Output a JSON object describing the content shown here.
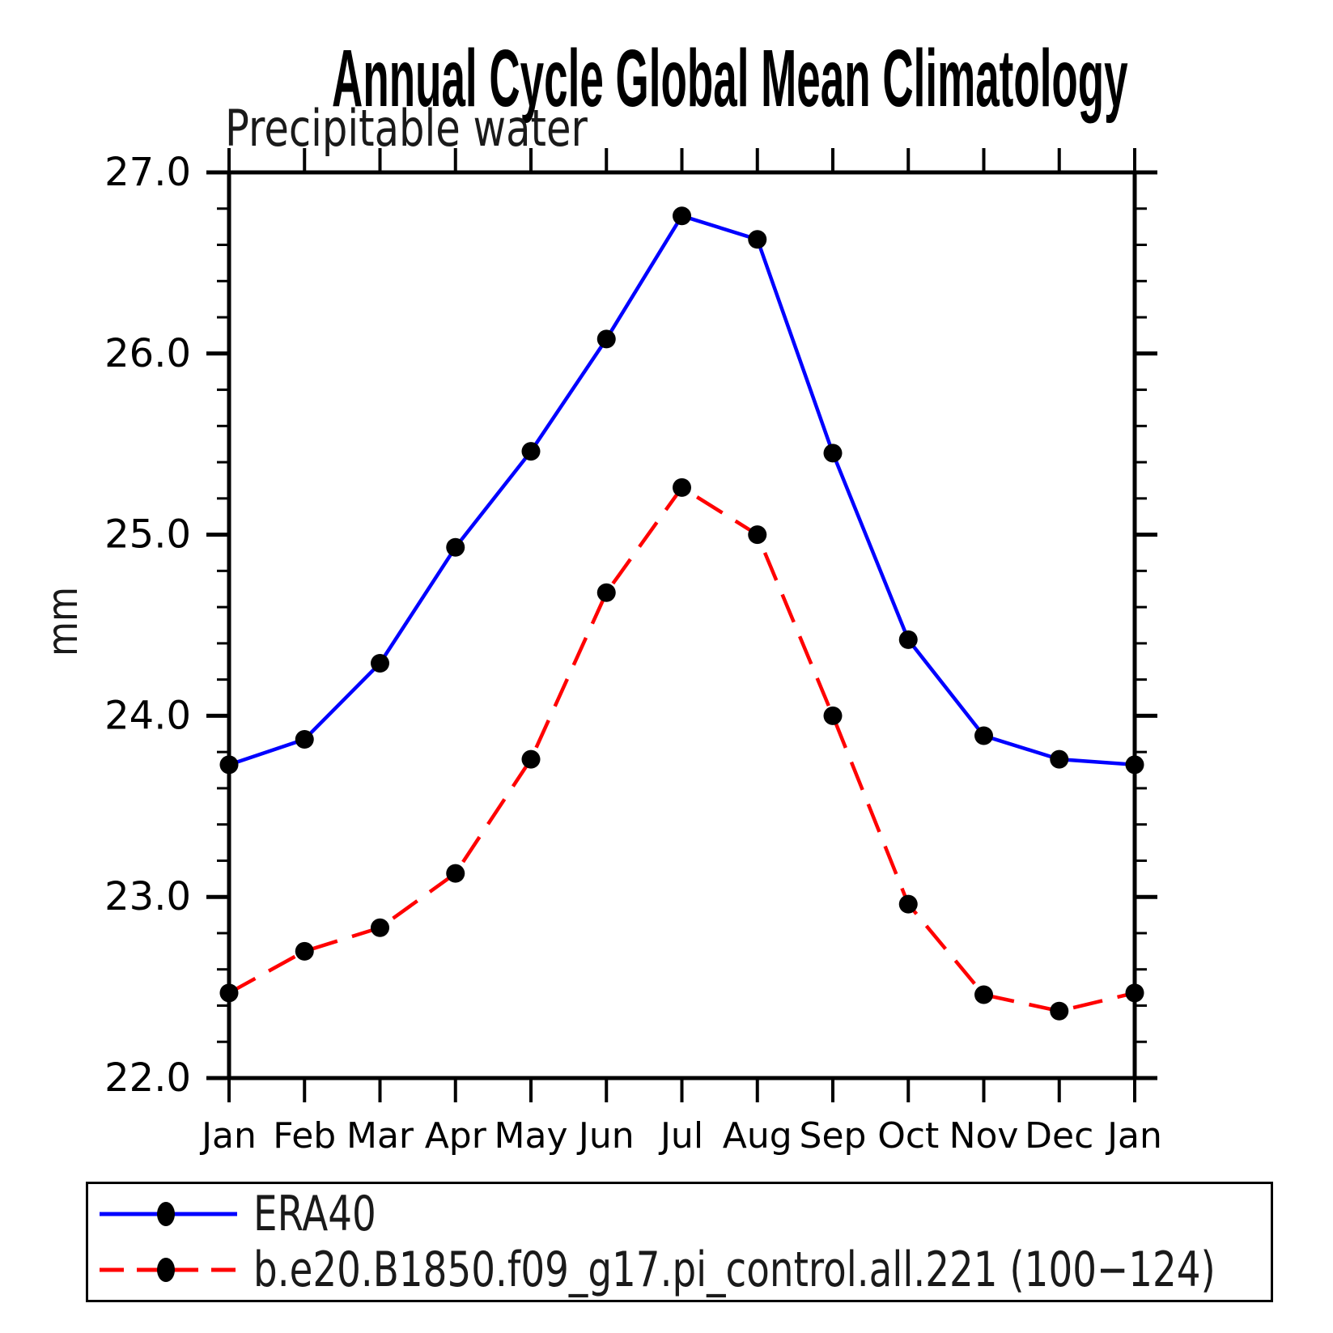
{
  "title": "Annual Cycle Global Mean Climatology",
  "subtitle": "Precipitable water",
  "y_axis_label": "mm",
  "y_tick_labels": [
    "27.0",
    "26.0",
    "25.0",
    "24.0",
    "23.0",
    "22.0"
  ],
  "chart_data": {
    "type": "line",
    "title": "Annual Cycle Global Mean Climatology",
    "subtitle": "Precipitable water",
    "ylabel": "mm",
    "xlabel": "",
    "x_categories": [
      "Jan",
      "Feb",
      "Mar",
      "Apr",
      "May",
      "Jun",
      "Jul",
      "Aug",
      "Sep",
      "Oct",
      "Nov",
      "Dec",
      "Jan"
    ],
    "ylim": [
      22.0,
      27.0
    ],
    "ytick_major_interval": 1.0,
    "ytick_minor_interval": 0.2,
    "grid": false,
    "legend_position": "bottom",
    "series": [
      {
        "name": "ERA40",
        "color": "#0000ff",
        "line_style": "solid",
        "marker": "filled-circle",
        "marker_color": "#000000",
        "values": [
          23.73,
          23.87,
          24.29,
          24.93,
          25.46,
          26.08,
          26.76,
          26.63,
          25.45,
          24.42,
          23.89,
          23.76,
          23.73
        ]
      },
      {
        "name": "b.e20.B1850.f09_g17.pi_control.all.221 (100−124)",
        "color": "#ff0000",
        "line_style": "dashed",
        "marker": "filled-circle",
        "marker_color": "#000000",
        "values": [
          22.47,
          22.7,
          22.83,
          23.13,
          23.76,
          24.68,
          25.26,
          25.0,
          24.0,
          22.96,
          22.46,
          22.37,
          22.47
        ]
      }
    ]
  }
}
